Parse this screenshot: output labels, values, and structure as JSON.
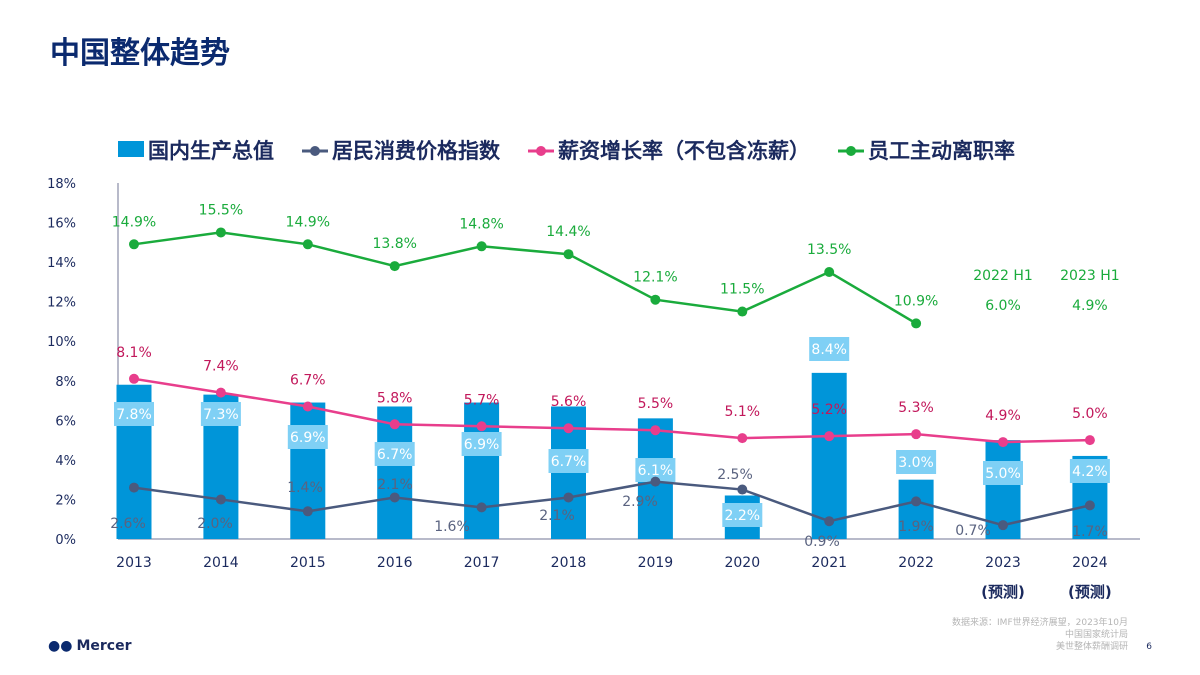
{
  "title": "中国整体趋势",
  "footer": {
    "logo": "Mercer",
    "source_lines": [
      "数据来源：IMF世界经济展望，2023年10月",
      "中国国家统计局",
      "美世整体薪酬调研"
    ],
    "page": "6"
  },
  "chart_data": {
    "type": "bar+line",
    "categories": [
      "2013",
      "2014",
      "2015",
      "2016",
      "2017",
      "2018",
      "2019",
      "2020",
      "2021",
      "2022",
      "2023",
      "2024"
    ],
    "category_sublabels": [
      "",
      "",
      "",
      "",
      "",
      "",
      "",
      "",
      "",
      "",
      "(预测)",
      "(预测)"
    ],
    "ylim": [
      0,
      18
    ],
    "yticks": [
      "0%",
      "2%",
      "4%",
      "6%",
      "8%",
      "10%",
      "12%",
      "14%",
      "16%",
      "18%"
    ],
    "series": [
      {
        "name": "国内生产总值",
        "type": "bar",
        "color": "#0095d9",
        "values": [
          7.8,
          7.3,
          6.9,
          6.7,
          6.9,
          6.7,
          6.1,
          2.2,
          8.4,
          3.0,
          5.0,
          4.2
        ],
        "labels": [
          "7.8%",
          "7.3%",
          "6.9%",
          "6.7%",
          "6.9%",
          "6.7%",
          "6.1%",
          "2.2%",
          "8.4%",
          "3.0%",
          "5.0%",
          "4.2%"
        ]
      },
      {
        "name": "居民消费价格指数",
        "type": "line",
        "color": "#4a5a7e",
        "values": [
          2.6,
          2.0,
          1.4,
          2.1,
          1.6,
          2.1,
          2.9,
          2.5,
          0.9,
          1.9,
          0.7,
          1.7
        ],
        "labels": [
          "2.6%",
          "2.0%",
          "1.4%",
          "2.1%",
          "1.6%",
          "2.1%",
          "2.9%",
          "2.5%",
          "0.9%",
          "1.9%",
          "0.7%",
          "1.7%"
        ]
      },
      {
        "name": "薪资增长率（不包含冻薪）",
        "type": "line",
        "color": "#e83e8c",
        "values": [
          8.1,
          7.4,
          6.7,
          5.8,
          5.7,
          5.6,
          5.5,
          5.1,
          5.2,
          5.3,
          4.9,
          5.0
        ],
        "labels": [
          "8.1%",
          "7.4%",
          "6.7%",
          "5.8%",
          "5.7%",
          "5.6%",
          "5.5%",
          "5.1%",
          "5.2%",
          "5.3%",
          "4.9%",
          "5.0%"
        ]
      },
      {
        "name": "员工主动离职率",
        "type": "line",
        "color": "#1aab3c",
        "values": [
          14.9,
          15.5,
          14.9,
          13.8,
          14.8,
          14.4,
          12.1,
          11.5,
          13.5,
          10.9,
          null,
          null
        ],
        "labels": [
          "14.9%",
          "15.5%",
          "14.9%",
          "13.8%",
          "14.8%",
          "14.4%",
          "12.1%",
          "11.5%",
          "13.5%",
          "10.9%",
          "",
          ""
        ]
      }
    ],
    "annotations": [
      {
        "category": "2023",
        "lines": [
          "2022 H1",
          "6.0%"
        ]
      },
      {
        "category": "2024",
        "lines": [
          "2023 H1",
          "4.9%"
        ]
      }
    ],
    "grid": false,
    "legend": "top"
  }
}
